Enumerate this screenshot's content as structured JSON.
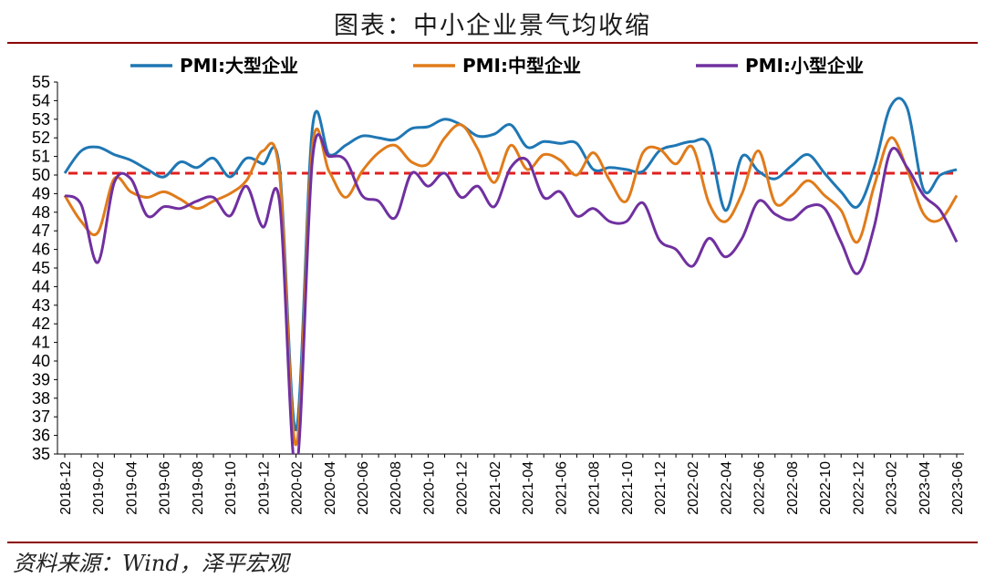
{
  "page": {
    "title": "图表：中小企业景气均收缩",
    "source": "资料来源：Wind，泽平宏观"
  },
  "chart_data": {
    "type": "line",
    "title": "图表：中小企业景气均收缩",
    "xlabel": "",
    "ylabel": "",
    "ylim": [
      35,
      55
    ],
    "y_ticks": [
      35,
      36,
      37,
      38,
      39,
      40,
      41,
      42,
      43,
      44,
      45,
      46,
      47,
      48,
      49,
      50,
      51,
      52,
      53,
      54,
      55
    ],
    "grid": false,
    "legend_position": "top",
    "x": [
      "2018-12",
      "2019-01",
      "2019-02",
      "2019-03",
      "2019-04",
      "2019-05",
      "2019-06",
      "2019-07",
      "2019-08",
      "2019-09",
      "2019-10",
      "2019-11",
      "2019-12",
      "2020-01",
      "2020-02",
      "2020-03",
      "2020-04",
      "2020-05",
      "2020-06",
      "2020-07",
      "2020-08",
      "2020-09",
      "2020-10",
      "2020-11",
      "2020-12",
      "2021-01",
      "2021-02",
      "2021-03",
      "2021-04",
      "2021-05",
      "2021-06",
      "2021-07",
      "2021-08",
      "2021-09",
      "2021-10",
      "2021-11",
      "2021-12",
      "2022-01",
      "2022-02",
      "2022-03",
      "2022-04",
      "2022-05",
      "2022-06",
      "2022-07",
      "2022-08",
      "2022-09",
      "2022-10",
      "2022-11",
      "2022-12",
      "2023-01",
      "2023-02",
      "2023-03",
      "2023-04",
      "2023-05",
      "2023-06"
    ],
    "x_tick_labels": [
      "2018-12",
      "2019-02",
      "2019-04",
      "2019-06",
      "2019-08",
      "2019-10",
      "2019-12",
      "2020-02",
      "2020-04",
      "2020-06",
      "2020-08",
      "2020-10",
      "2020-12",
      "2021-02",
      "2021-04",
      "2021-06",
      "2021-08",
      "2021-10",
      "2021-12",
      "2022-02",
      "2022-04",
      "2022-06",
      "2022-08",
      "2022-10",
      "2022-12",
      "2023-02",
      "2023-04",
      "2023-06"
    ],
    "series": [
      {
        "name": "PMI:大型企业",
        "color": "#1f77b4",
        "values": [
          50.1,
          51.3,
          51.5,
          51.1,
          50.8,
          50.3,
          49.9,
          50.7,
          50.4,
          50.9,
          49.9,
          50.9,
          50.6,
          50.4,
          36.3,
          52.6,
          51.1,
          51.6,
          52.1,
          52.0,
          51.9,
          52.5,
          52.6,
          53.0,
          52.7,
          52.1,
          52.2,
          52.7,
          51.5,
          51.8,
          51.7,
          51.7,
          50.3,
          50.4,
          50.3,
          50.2,
          51.3,
          51.6,
          51.8,
          51.6,
          48.1,
          51.0,
          50.2,
          49.8,
          50.5,
          51.1,
          50.1,
          49.1,
          48.3,
          50.4,
          53.7,
          53.6,
          49.2,
          50.0,
          50.3
        ]
      },
      {
        "name": "PMI:中型企业",
        "color": "#e07b1a",
        "values": [
          48.9,
          47.5,
          46.9,
          49.8,
          49.1,
          48.8,
          49.1,
          48.7,
          48.2,
          48.6,
          49.0,
          49.7,
          51.3,
          50.1,
          35.5,
          51.6,
          50.2,
          48.8,
          50.2,
          51.2,
          51.6,
          50.7,
          50.6,
          52.0,
          52.7,
          51.4,
          49.6,
          51.6,
          50.3,
          51.1,
          50.8,
          50.0,
          51.2,
          49.7,
          48.6,
          51.2,
          51.4,
          50.6,
          51.5,
          48.5,
          47.5,
          49.0,
          51.3,
          48.5,
          48.9,
          49.7,
          48.9,
          48.1,
          46.4,
          49.4,
          52.0,
          50.3,
          47.9,
          47.6,
          48.9
        ]
      },
      {
        "name": "PMI:小型企业",
        "color": "#7030a0",
        "values": [
          48.9,
          48.4,
          45.3,
          49.6,
          49.8,
          47.8,
          48.3,
          48.2,
          48.6,
          48.8,
          47.8,
          49.4,
          47.2,
          48.6,
          34.1,
          50.9,
          51.0,
          50.8,
          48.9,
          48.6,
          47.7,
          50.1,
          49.4,
          50.1,
          48.8,
          49.4,
          48.3,
          50.4,
          50.8,
          48.8,
          49.1,
          47.8,
          48.2,
          47.5,
          47.5,
          48.5,
          46.5,
          46.0,
          45.1,
          46.6,
          45.6,
          46.6,
          48.6,
          47.9,
          47.6,
          48.3,
          48.2,
          46.4,
          44.7,
          47.2,
          51.3,
          50.4,
          48.9,
          48.1,
          46.4
        ]
      }
    ],
    "reference_line": {
      "value": 50.1,
      "color": "#e02020",
      "style": "dashed"
    }
  }
}
